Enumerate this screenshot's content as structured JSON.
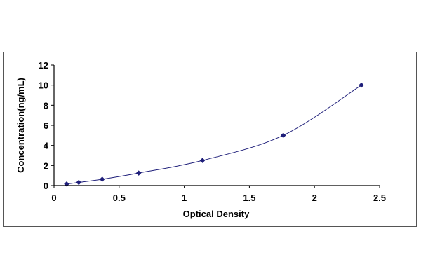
{
  "chart_data": {
    "type": "scatter",
    "title": "",
    "xlabel": "Optical Density",
    "ylabel": "Concentration(ng/mL)",
    "xlim": [
      0,
      2.5
    ],
    "ylim": [
      0,
      12
    ],
    "x_ticks": [
      "0",
      "0.5",
      "1",
      "1.5",
      "2",
      "2.5"
    ],
    "y_ticks": [
      "0",
      "2",
      "4",
      "6",
      "8",
      "10",
      "12"
    ],
    "grid": false,
    "legend": "none",
    "fit_curve": "smooth",
    "series": [
      {
        "x": [
          0.097,
          0.19,
          0.37,
          0.65,
          1.14,
          1.76,
          2.36
        ],
        "y": [
          0.156,
          0.3125,
          0.625,
          1.25,
          2.5,
          5,
          10
        ],
        "color": "#1f1f7a"
      }
    ]
  }
}
